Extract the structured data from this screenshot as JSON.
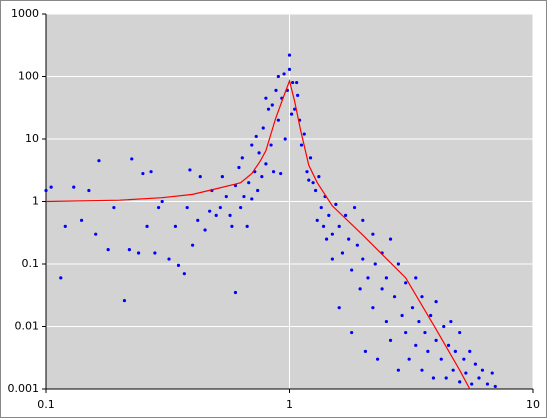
{
  "chart_data": {
    "type": "scatter",
    "xlog": true,
    "ylog": true,
    "grid": true,
    "xlim": [
      0.1,
      10
    ],
    "ylim": [
      0.001,
      1000
    ],
    "xticks": [
      0.1,
      1,
      10
    ],
    "yticks": [
      0.001,
      0.01,
      0.1,
      1,
      10,
      100,
      1000
    ],
    "series": [
      {
        "type": "scatter",
        "color": "#0000ff",
        "x": [
          0.1,
          0.105,
          0.115,
          0.12,
          0.13,
          0.14,
          0.15,
          0.16,
          0.165,
          0.18,
          0.19,
          0.21,
          0.22,
          0.225,
          0.24,
          0.25,
          0.26,
          0.27,
          0.28,
          0.29,
          0.3,
          0.32,
          0.34,
          0.35,
          0.37,
          0.38,
          0.39,
          0.4,
          0.42,
          0.43,
          0.45,
          0.47,
          0.48,
          0.5,
          0.52,
          0.53,
          0.55,
          0.57,
          0.58,
          0.6,
          0.6,
          0.62,
          0.63,
          0.64,
          0.65,
          0.67,
          0.68,
          0.7,
          0.7,
          0.72,
          0.73,
          0.74,
          0.75,
          0.77,
          0.78,
          0.8,
          0.8,
          0.82,
          0.84,
          0.85,
          0.86,
          0.88,
          0.9,
          0.9,
          0.92,
          0.93,
          0.95,
          0.96,
          0.98,
          1.0,
          1.0,
          1.02,
          1.03,
          1.05,
          1.07,
          1.08,
          1.1,
          1.12,
          1.15,
          1.18,
          1.2,
          1.22,
          1.25,
          1.28,
          1.3,
          1.32,
          1.35,
          1.38,
          1.4,
          1.42,
          1.45,
          1.5,
          1.5,
          1.55,
          1.6,
          1.6,
          1.65,
          1.7,
          1.75,
          1.8,
          1.8,
          1.85,
          1.9,
          1.95,
          2.0,
          2.0,
          2.05,
          2.1,
          2.2,
          2.2,
          2.25,
          2.3,
          2.4,
          2.4,
          2.5,
          2.5,
          2.6,
          2.6,
          2.7,
          2.8,
          2.8,
          2.9,
          3.0,
          3.0,
          3.1,
          3.2,
          3.3,
          3.3,
          3.4,
          3.5,
          3.5,
          3.6,
          3.7,
          3.8,
          3.9,
          4.0,
          4.0,
          4.2,
          4.3,
          4.4,
          4.5,
          4.6,
          4.7,
          4.8,
          5.0,
          5.0,
          5.2,
          5.3,
          5.5,
          5.6,
          5.8,
          6.0,
          6.2,
          6.5,
          6.8,
          7.0
        ],
        "y": [
          1.5,
          1.7,
          0.06,
          0.4,
          1.7,
          0.5,
          1.5,
          0.3,
          4.5,
          0.17,
          0.8,
          0.026,
          0.17,
          4.8,
          0.15,
          2.8,
          0.4,
          3,
          0.15,
          0.8,
          1,
          0.12,
          0.4,
          0.095,
          0.07,
          0.8,
          3.2,
          0.2,
          0.5,
          2.5,
          0.35,
          0.7,
          1.5,
          0.6,
          0.8,
          2.5,
          1.2,
          0.6,
          0.4,
          0.035,
          1.8,
          3.5,
          0.8,
          5,
          1.2,
          0.4,
          2,
          8,
          1.1,
          3,
          11,
          1.5,
          6,
          2.5,
          15,
          4,
          45,
          30,
          8,
          35,
          3,
          60,
          20,
          100,
          2.8,
          45,
          110,
          10,
          60,
          220,
          130,
          25,
          80,
          30,
          80,
          50,
          20,
          8,
          12,
          3,
          2.2,
          5,
          2,
          1.5,
          0.5,
          2.5,
          0.8,
          0.4,
          1.2,
          0.25,
          0.6,
          0.12,
          0.3,
          0.9,
          0.4,
          0.02,
          0.15,
          0.6,
          0.25,
          0.08,
          0.008,
          0.8,
          0.2,
          0.04,
          0.5,
          0.12,
          0.004,
          0.06,
          0.3,
          0.02,
          0.1,
          0.003,
          0.04,
          0.15,
          0.012,
          0.06,
          0.25,
          0.006,
          0.03,
          0.1,
          0.002,
          0.015,
          0.05,
          0.008,
          0.003,
          0.02,
          0.06,
          0.005,
          0.012,
          0.002,
          0.03,
          0.008,
          0.004,
          0.015,
          0.0015,
          0.006,
          0.025,
          0.003,
          0.01,
          0.0015,
          0.005,
          0.012,
          0.002,
          0.004,
          0.0013,
          0.008,
          0.003,
          0.0018,
          0.004,
          0.0012,
          0.0025,
          0.0015,
          0.002,
          0.0012,
          0.0018,
          0.0011
        ]
      },
      {
        "type": "line",
        "color": "#ff0000",
        "x": [
          0.1,
          0.2,
          0.3,
          0.4,
          0.5,
          0.6,
          0.63,
          0.7,
          0.76,
          0.8,
          0.876,
          0.95,
          1.0,
          1.05,
          1.11,
          1.2,
          1.3,
          1.5,
          2,
          3,
          4,
          5,
          5.5
        ],
        "y": [
          1.0,
          1.05,
          1.15,
          1.3,
          1.6,
          1.9,
          2.0,
          2.8,
          4.5,
          6.5,
          21,
          50,
          85,
          40,
          14,
          3.8,
          2,
          0.85,
          0.29,
          0.06,
          0.009,
          0.002,
          0.001
        ]
      }
    ]
  }
}
